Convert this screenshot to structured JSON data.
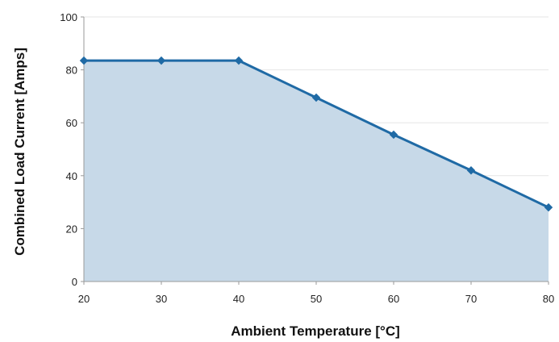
{
  "chart_data": {
    "type": "area",
    "title": "",
    "xlabel": "Ambient Temperature [°C]",
    "ylabel": "Combined Load Current [Amps]",
    "x": [
      20,
      30,
      40,
      50,
      60,
      70,
      80
    ],
    "series": [
      {
        "values": [
          83.5,
          83.5,
          83.5,
          69.5,
          55.5,
          42,
          28
        ]
      }
    ],
    "xlim": [
      20,
      80
    ],
    "ylim": [
      0,
      100
    ],
    "xticks": [
      "20",
      "30",
      "40",
      "50",
      "60",
      "70",
      "80"
    ],
    "yticks": [
      "0",
      "20",
      "40",
      "60",
      "80",
      "100"
    ],
    "grid": true,
    "legend": "none",
    "colors": {
      "line": "#1f6aa5",
      "fill": "#c7d9e8",
      "marker": "#1f6aa5"
    }
  }
}
